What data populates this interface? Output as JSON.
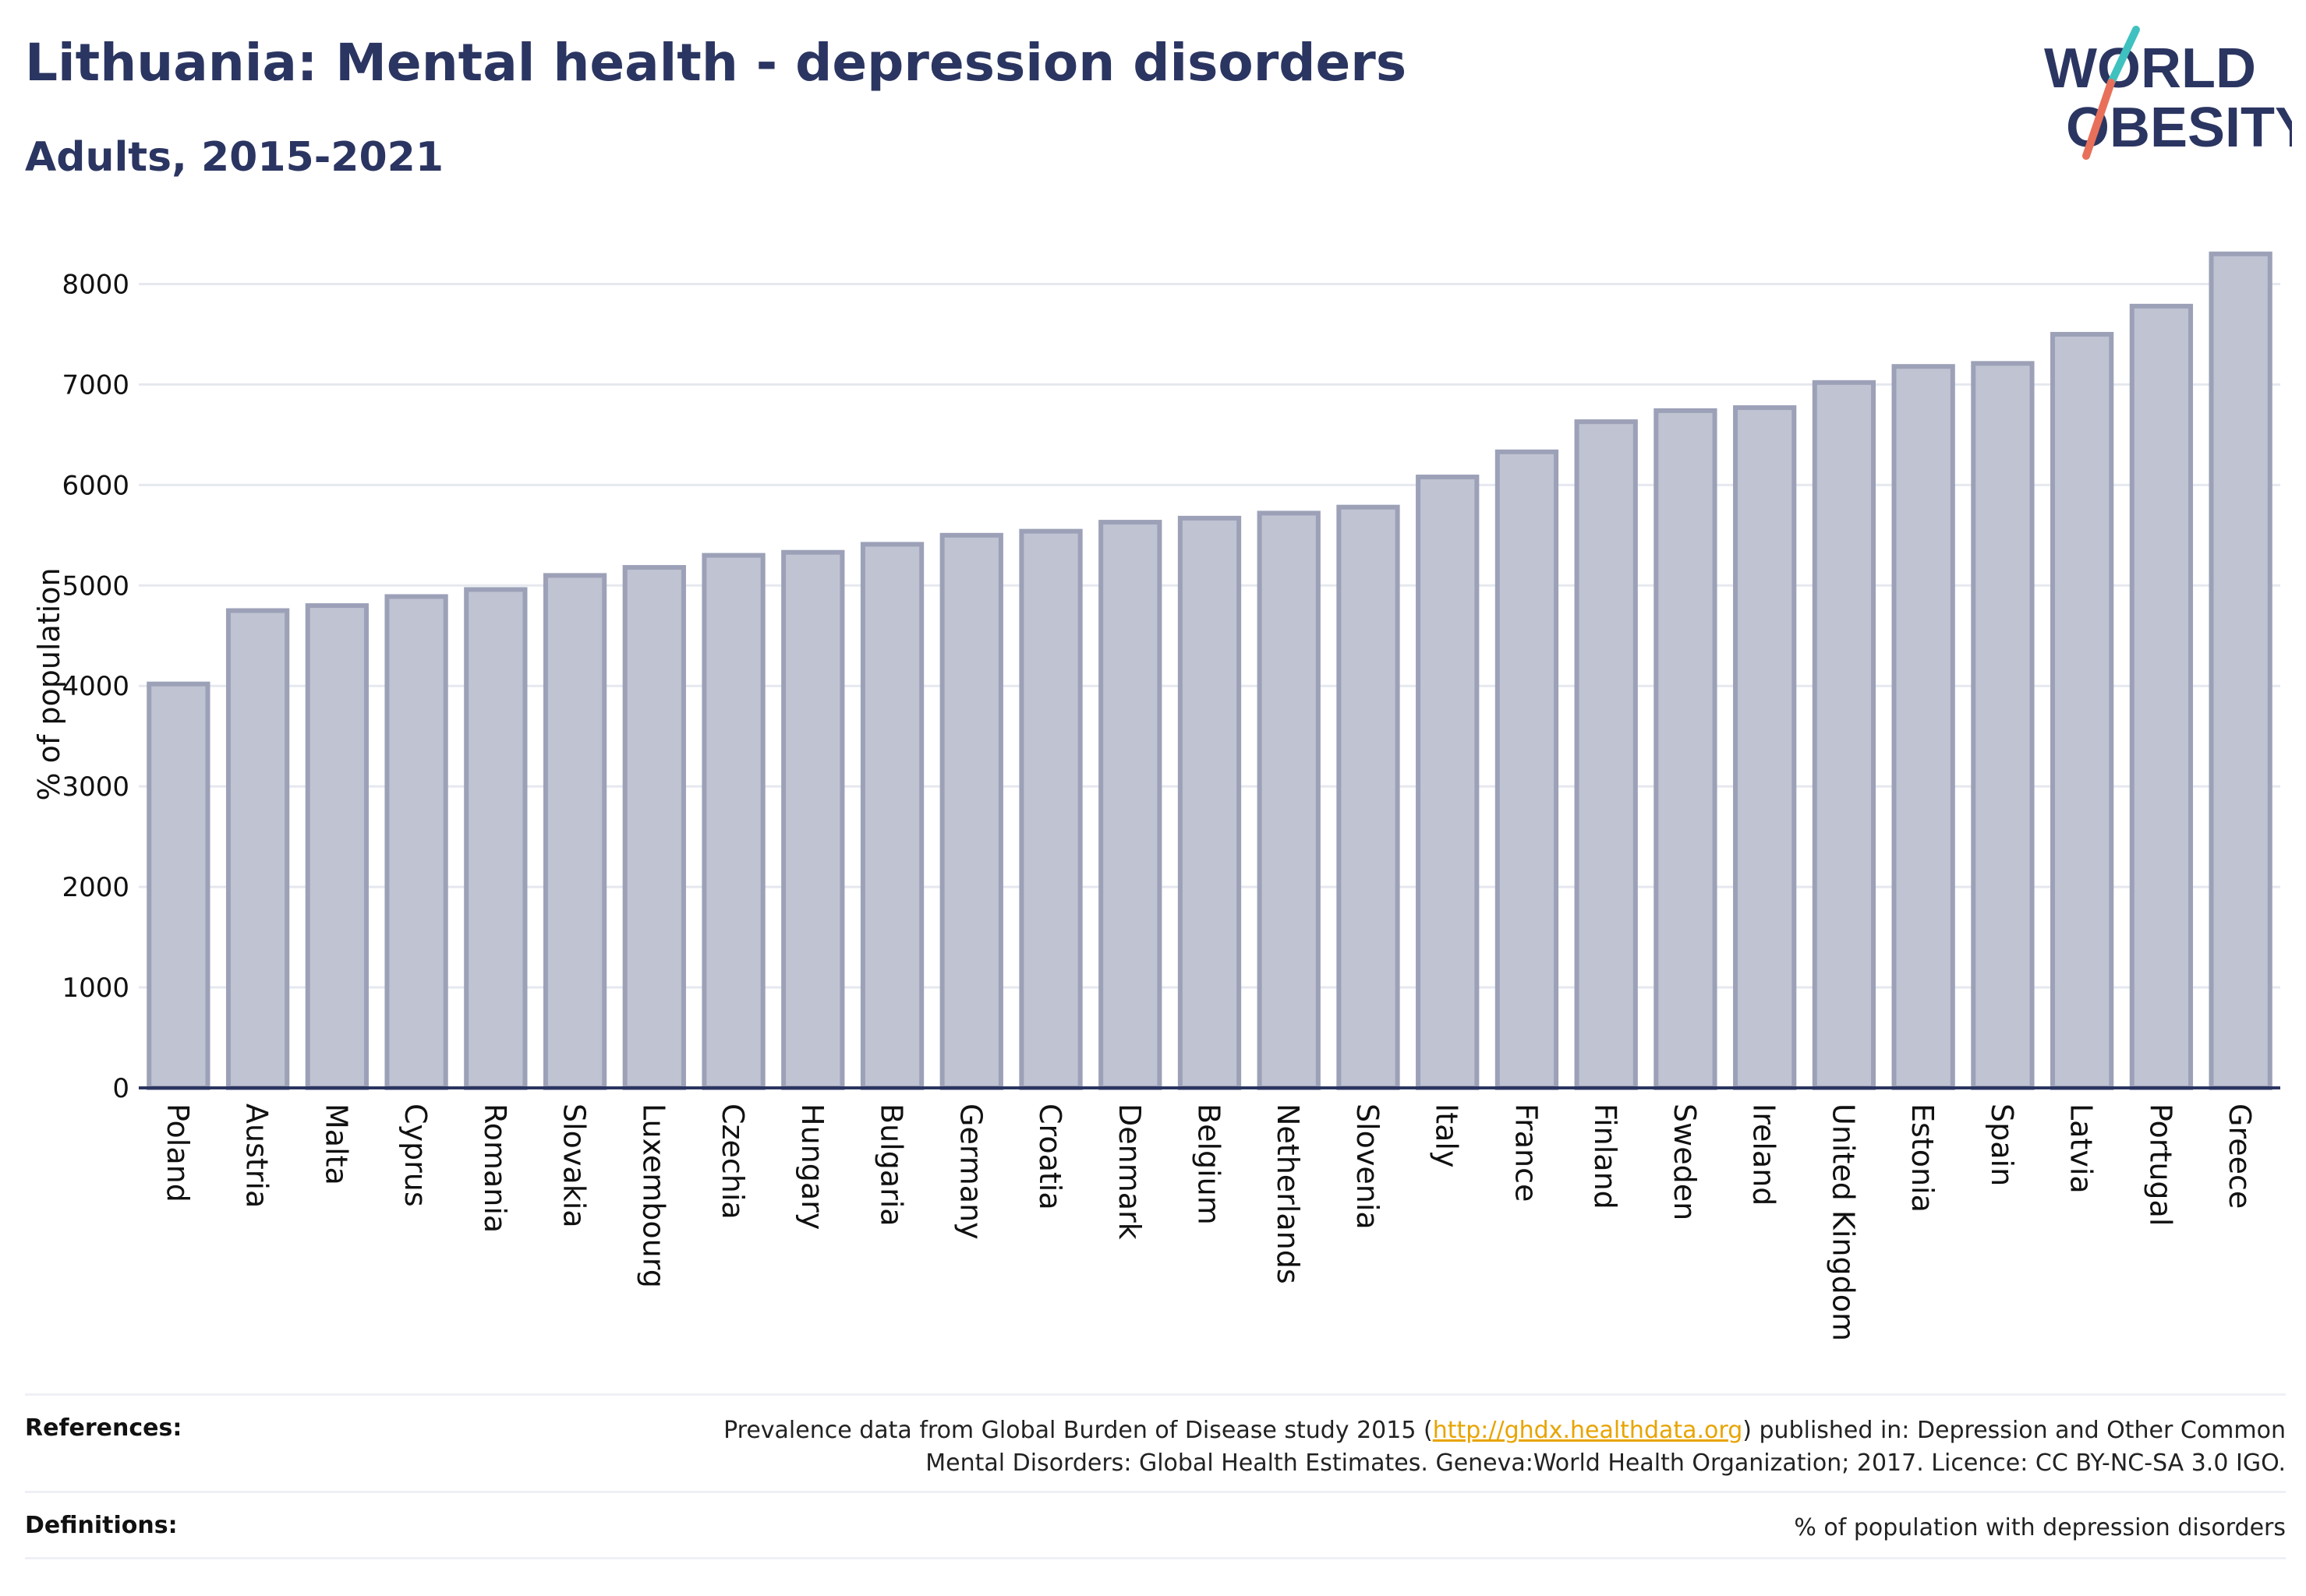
{
  "header": {
    "title": "Lithuania: Mental health - depression disorders",
    "subtitle": "Adults, 2015-2021"
  },
  "logo": {
    "line1": "WORLD",
    "line2": "OBESITY",
    "accent_teal": "#3fc1c0",
    "accent_coral": "#e8705a"
  },
  "chart_data": {
    "type": "bar",
    "ylabel": "% of population",
    "ylim": [
      0,
      8500
    ],
    "yticks": [
      0,
      1000,
      2000,
      3000,
      4000,
      5000,
      6000,
      7000,
      8000
    ],
    "grid": true,
    "bar_color": "#bfc3d2",
    "bar_border": "#9ca1b8",
    "categories": [
      "Poland",
      "Austria",
      "Malta",
      "Cyprus",
      "Romania",
      "Slovakia",
      "Luxembourg",
      "Czechia",
      "Hungary",
      "Bulgaria",
      "Germany",
      "Croatia",
      "Denmark",
      "Belgium",
      "Netherlands",
      "Slovenia",
      "Italy",
      "France",
      "Finland",
      "Sweden",
      "Ireland",
      "United Kingdom",
      "Estonia",
      "Spain",
      "Latvia",
      "Portugal",
      "Greece"
    ],
    "values": [
      4020,
      4750,
      4800,
      4890,
      4960,
      5100,
      5180,
      5300,
      5330,
      5410,
      5500,
      5540,
      5630,
      5670,
      5720,
      5780,
      6080,
      6330,
      6630,
      6740,
      6770,
      7020,
      7180,
      7210,
      7500,
      7780,
      8300
    ]
  },
  "footer": {
    "references_label": "References:",
    "references_pre": "Prevalence data from Global Burden of Disease study 2015 (",
    "references_link": "http://ghdx.healthdata.org",
    "references_post": ") published in: Depression and Other Common",
    "references_line2": "Mental Disorders: Global Health Estimates. Geneva:World Health Organization; 2017. Licence: CC BY-NC-SA 3.0 IGO.",
    "definitions_label": "Definitions:",
    "definitions_text": "% of population with depression disorders"
  }
}
